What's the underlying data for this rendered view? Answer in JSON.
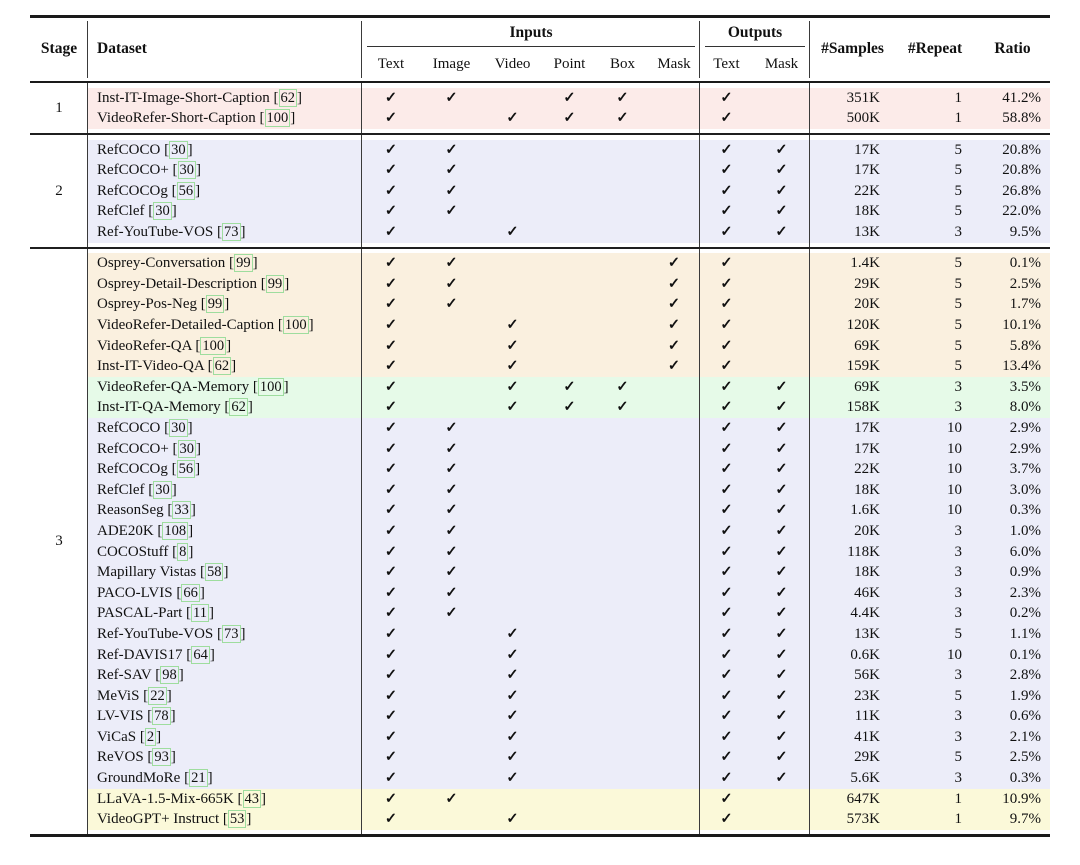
{
  "table": {
    "headers": {
      "stage": "Stage",
      "dataset": "Dataset",
      "inputs_group": "Inputs",
      "outputs_group": "Outputs",
      "input_cols": [
        "Text",
        "Image",
        "Video",
        "Point",
        "Box",
        "Mask"
      ],
      "output_cols": [
        "Text",
        "Mask"
      ],
      "samples": "#Samples",
      "repeat": "#Repeat",
      "ratio": "Ratio"
    },
    "check_glyph": "✓",
    "colors": {
      "pink": "#fcebe9",
      "lavender": "#ecedf9",
      "peach": "#faf0df",
      "green": "#e6fae8",
      "yellow": "#fbf9d9",
      "cite_border": "#9edd9e"
    },
    "stages": [
      {
        "label": "1",
        "rows": [
          {
            "name": "Inst-IT-Image-Short-Caption",
            "cite": "62",
            "color": "pink",
            "in": [
              1,
              1,
              0,
              1,
              1,
              0
            ],
            "out": [
              1,
              0
            ],
            "samples": "351K",
            "repeat": "1",
            "ratio": "41.2%"
          },
          {
            "name": "VideoRefer-Short-Caption",
            "cite": "100",
            "color": "pink",
            "in": [
              1,
              0,
              1,
              1,
              1,
              0
            ],
            "out": [
              1,
              0
            ],
            "samples": "500K",
            "repeat": "1",
            "ratio": "58.8%"
          }
        ]
      },
      {
        "label": "2",
        "rows": [
          {
            "name": "RefCOCO",
            "cite": "30",
            "color": "lavender",
            "in": [
              1,
              1,
              0,
              0,
              0,
              0
            ],
            "out": [
              1,
              1
            ],
            "samples": "17K",
            "repeat": "5",
            "ratio": "20.8%"
          },
          {
            "name": "RefCOCO+",
            "cite": "30",
            "color": "lavender",
            "in": [
              1,
              1,
              0,
              0,
              0,
              0
            ],
            "out": [
              1,
              1
            ],
            "samples": "17K",
            "repeat": "5",
            "ratio": "20.8%"
          },
          {
            "name": "RefCOCOg",
            "cite": "56",
            "color": "lavender",
            "in": [
              1,
              1,
              0,
              0,
              0,
              0
            ],
            "out": [
              1,
              1
            ],
            "samples": "22K",
            "repeat": "5",
            "ratio": "26.8%"
          },
          {
            "name": "RefClef",
            "cite": "30",
            "color": "lavender",
            "in": [
              1,
              1,
              0,
              0,
              0,
              0
            ],
            "out": [
              1,
              1
            ],
            "samples": "18K",
            "repeat": "5",
            "ratio": "22.0%"
          },
          {
            "name": "Ref-YouTube-VOS",
            "cite": "73",
            "color": "lavender",
            "in": [
              1,
              0,
              1,
              0,
              0,
              0
            ],
            "out": [
              1,
              1
            ],
            "samples": "13K",
            "repeat": "3",
            "ratio": "9.5%"
          }
        ]
      },
      {
        "label": "3",
        "rows": [
          {
            "name": "Osprey-Conversation",
            "cite": "99",
            "color": "peach",
            "in": [
              1,
              1,
              0,
              0,
              0,
              1
            ],
            "out": [
              1,
              0
            ],
            "samples": "1.4K",
            "repeat": "5",
            "ratio": "0.1%"
          },
          {
            "name": "Osprey-Detail-Description",
            "cite": "99",
            "color": "peach",
            "in": [
              1,
              1,
              0,
              0,
              0,
              1
            ],
            "out": [
              1,
              0
            ],
            "samples": "29K",
            "repeat": "5",
            "ratio": "2.5%"
          },
          {
            "name": "Osprey-Pos-Neg",
            "cite": "99",
            "color": "peach",
            "in": [
              1,
              1,
              0,
              0,
              0,
              1
            ],
            "out": [
              1,
              0
            ],
            "samples": "20K",
            "repeat": "5",
            "ratio": "1.7%"
          },
          {
            "name": "VideoRefer-Detailed-Caption",
            "cite": "100",
            "color": "peach",
            "in": [
              1,
              0,
              1,
              0,
              0,
              1
            ],
            "out": [
              1,
              0
            ],
            "samples": "120K",
            "repeat": "5",
            "ratio": "10.1%"
          },
          {
            "name": "VideoRefer-QA",
            "cite": "100",
            "color": "peach",
            "in": [
              1,
              0,
              1,
              0,
              0,
              1
            ],
            "out": [
              1,
              0
            ],
            "samples": "69K",
            "repeat": "5",
            "ratio": "5.8%"
          },
          {
            "name": "Inst-IT-Video-QA",
            "cite": "62",
            "color": "peach",
            "in": [
              1,
              0,
              1,
              0,
              0,
              1
            ],
            "out": [
              1,
              0
            ],
            "samples": "159K",
            "repeat": "5",
            "ratio": "13.4%"
          },
          {
            "name": "VideoRefer-QA-Memory",
            "cite": "100",
            "color": "green",
            "in": [
              1,
              0,
              1,
              1,
              1,
              0
            ],
            "out": [
              1,
              1
            ],
            "samples": "69K",
            "repeat": "3",
            "ratio": "3.5%"
          },
          {
            "name": "Inst-IT-QA-Memory",
            "cite": "62",
            "color": "green",
            "in": [
              1,
              0,
              1,
              1,
              1,
              0
            ],
            "out": [
              1,
              1
            ],
            "samples": "158K",
            "repeat": "3",
            "ratio": "8.0%"
          },
          {
            "name": "RefCOCO",
            "cite": "30",
            "color": "lavender",
            "in": [
              1,
              1,
              0,
              0,
              0,
              0
            ],
            "out": [
              1,
              1
            ],
            "samples": "17K",
            "repeat": "10",
            "ratio": "2.9%"
          },
          {
            "name": "RefCOCO+",
            "cite": "30",
            "color": "lavender",
            "in": [
              1,
              1,
              0,
              0,
              0,
              0
            ],
            "out": [
              1,
              1
            ],
            "samples": "17K",
            "repeat": "10",
            "ratio": "2.9%"
          },
          {
            "name": "RefCOCOg",
            "cite": "56",
            "color": "lavender",
            "in": [
              1,
              1,
              0,
              0,
              0,
              0
            ],
            "out": [
              1,
              1
            ],
            "samples": "22K",
            "repeat": "10",
            "ratio": "3.7%"
          },
          {
            "name": "RefClef",
            "cite": "30",
            "color": "lavender",
            "in": [
              1,
              1,
              0,
              0,
              0,
              0
            ],
            "out": [
              1,
              1
            ],
            "samples": "18K",
            "repeat": "10",
            "ratio": "3.0%"
          },
          {
            "name": "ReasonSeg",
            "cite": "33",
            "color": "lavender",
            "in": [
              1,
              1,
              0,
              0,
              0,
              0
            ],
            "out": [
              1,
              1
            ],
            "samples": "1.6K",
            "repeat": "10",
            "ratio": "0.3%"
          },
          {
            "name": "ADE20K",
            "cite": "108",
            "color": "lavender",
            "in": [
              1,
              1,
              0,
              0,
              0,
              0
            ],
            "out": [
              1,
              1
            ],
            "samples": "20K",
            "repeat": "3",
            "ratio": "1.0%"
          },
          {
            "name": "COCOStuff",
            "cite": "8",
            "color": "lavender",
            "in": [
              1,
              1,
              0,
              0,
              0,
              0
            ],
            "out": [
              1,
              1
            ],
            "samples": "118K",
            "repeat": "3",
            "ratio": "6.0%"
          },
          {
            "name": "Mapillary Vistas",
            "cite": "58",
            "color": "lavender",
            "in": [
              1,
              1,
              0,
              0,
              0,
              0
            ],
            "out": [
              1,
              1
            ],
            "samples": "18K",
            "repeat": "3",
            "ratio": "0.9%"
          },
          {
            "name": "PACO-LVIS",
            "cite": "66",
            "color": "lavender",
            "in": [
              1,
              1,
              0,
              0,
              0,
              0
            ],
            "out": [
              1,
              1
            ],
            "samples": "46K",
            "repeat": "3",
            "ratio": "2.3%"
          },
          {
            "name": "PASCAL-Part",
            "cite": "11",
            "color": "lavender",
            "in": [
              1,
              1,
              0,
              0,
              0,
              0
            ],
            "out": [
              1,
              1
            ],
            "samples": "4.4K",
            "repeat": "3",
            "ratio": "0.2%"
          },
          {
            "name": "Ref-YouTube-VOS",
            "cite": "73",
            "color": "lavender",
            "in": [
              1,
              0,
              1,
              0,
              0,
              0
            ],
            "out": [
              1,
              1
            ],
            "samples": "13K",
            "repeat": "5",
            "ratio": "1.1%"
          },
          {
            "name": "Ref-DAVIS17",
            "cite": "64",
            "color": "lavender",
            "in": [
              1,
              0,
              1,
              0,
              0,
              0
            ],
            "out": [
              1,
              1
            ],
            "samples": "0.6K",
            "repeat": "10",
            "ratio": "0.1%"
          },
          {
            "name": "Ref-SAV",
            "cite": "98",
            "color": "lavender",
            "in": [
              1,
              0,
              1,
              0,
              0,
              0
            ],
            "out": [
              1,
              1
            ],
            "samples": "56K",
            "repeat": "3",
            "ratio": "2.8%"
          },
          {
            "name": "MeViS",
            "cite": "22",
            "color": "lavender",
            "in": [
              1,
              0,
              1,
              0,
              0,
              0
            ],
            "out": [
              1,
              1
            ],
            "samples": "23K",
            "repeat": "5",
            "ratio": "1.9%"
          },
          {
            "name": "LV-VIS",
            "cite": "78",
            "color": "lavender",
            "in": [
              1,
              0,
              1,
              0,
              0,
              0
            ],
            "out": [
              1,
              1
            ],
            "samples": "11K",
            "repeat": "3",
            "ratio": "0.6%"
          },
          {
            "name": "ViCaS",
            "cite": "2",
            "color": "lavender",
            "in": [
              1,
              0,
              1,
              0,
              0,
              0
            ],
            "out": [
              1,
              1
            ],
            "samples": "41K",
            "repeat": "3",
            "ratio": "2.1%"
          },
          {
            "name": "ReVOS",
            "cite": "93",
            "color": "lavender",
            "in": [
              1,
              0,
              1,
              0,
              0,
              0
            ],
            "out": [
              1,
              1
            ],
            "samples": "29K",
            "repeat": "5",
            "ratio": "2.5%"
          },
          {
            "name": "GroundMoRe",
            "cite": "21",
            "color": "lavender",
            "in": [
              1,
              0,
              1,
              0,
              0,
              0
            ],
            "out": [
              1,
              1
            ],
            "samples": "5.6K",
            "repeat": "3",
            "ratio": "0.3%"
          },
          {
            "name": "LLaVA-1.5-Mix-665K",
            "cite": "43",
            "color": "yellow",
            "in": [
              1,
              1,
              0,
              0,
              0,
              0
            ],
            "out": [
              1,
              0
            ],
            "samples": "647K",
            "repeat": "1",
            "ratio": "10.9%"
          },
          {
            "name": "VideoGPT+ Instruct",
            "cite": "53",
            "color": "yellow",
            "in": [
              1,
              0,
              1,
              0,
              0,
              0
            ],
            "out": [
              1,
              0
            ],
            "samples": "573K",
            "repeat": "1",
            "ratio": "9.7%"
          }
        ]
      }
    ]
  }
}
